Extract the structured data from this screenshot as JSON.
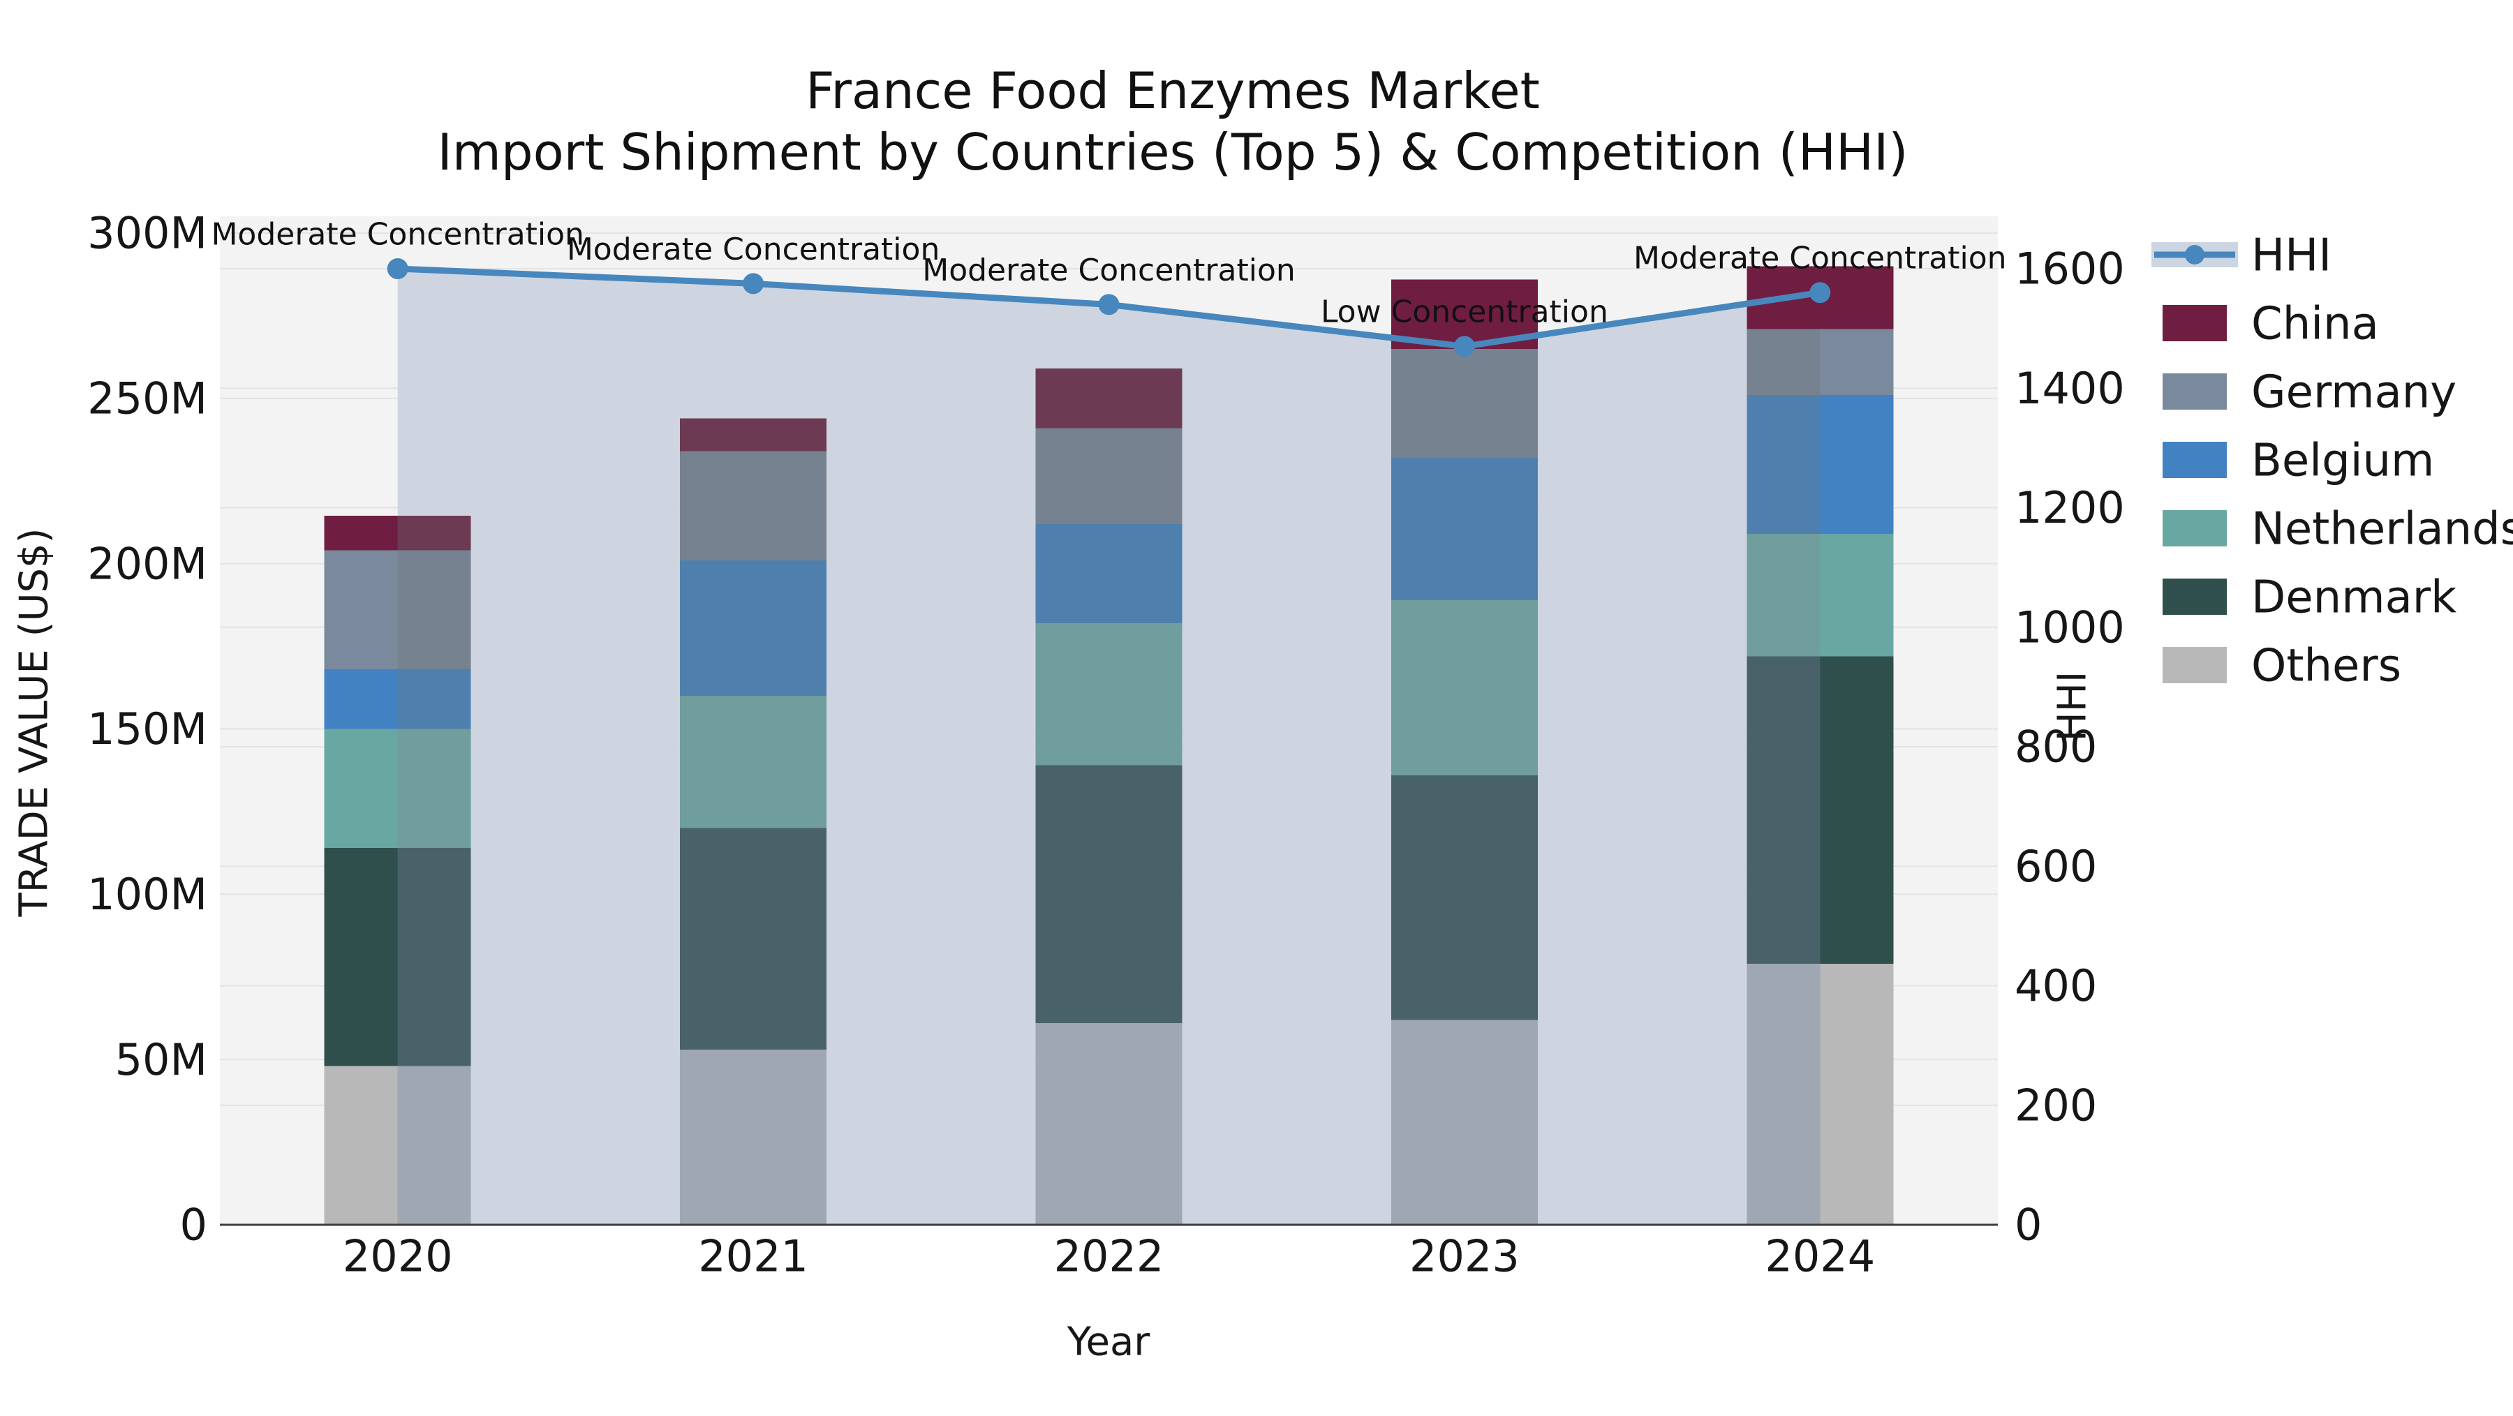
{
  "chart_data": {
    "type": "stacked_bar_with_line",
    "title_lines": [
      "France Food Enzymes Market",
      "Import Shipment by Countries (Top 5) & Competition (HHI)"
    ],
    "x_label": "Year",
    "y_left_label": "TRADE VALUE (US$)",
    "y_right_label": "HHI",
    "categories": [
      "2020",
      "2021",
      "2022",
      "2023",
      "2024"
    ],
    "value_unit": "M US$ (left axis)",
    "series": [
      {
        "name": "China",
        "values": [
          10.5,
          10,
          18,
          21,
          19
        ],
        "color": "#701d42",
        "muted_color": "#6d3a53"
      },
      {
        "name": "Germany",
        "values": [
          36,
          33,
          29,
          33,
          20
        ],
        "color": "#7a8a9c",
        "muted_color": "#76828f"
      },
      {
        "name": "Belgium",
        "values": [
          18,
          41,
          30,
          43,
          42
        ],
        "color": "#4282c2",
        "muted_color": "#4f80ad"
      },
      {
        "name": "Netherlands",
        "values": [
          36,
          40,
          43,
          53,
          37
        ],
        "color": "#69a7a3",
        "muted_color": "#6f9e9c"
      },
      {
        "name": "Denmark",
        "values": [
          66,
          67,
          78,
          74,
          93
        ],
        "color": "#2f4f4d",
        "muted_color": "#496269"
      },
      {
        "name": "Others",
        "values": [
          48,
          53,
          61,
          62,
          79
        ],
        "color": "#b8b8b8",
        "muted_color": "#9fa7b2"
      }
    ],
    "stack_order_bottom_to_top": [
      "Others",
      "Denmark",
      "Netherlands",
      "Belgium",
      "Germany",
      "China"
    ],
    "line_series": {
      "name": "HHI",
      "values": [
        1600,
        1575,
        1540,
        1470,
        1560
      ],
      "color": "#4787bd",
      "area_color": "#cbd3e0"
    },
    "annotations": [
      "Moderate Concentration",
      "Moderate Concentration",
      "Moderate Concentration",
      "Low Concentration",
      "Moderate Concentration"
    ],
    "y_left_ticks": [
      {
        "value": 0,
        "label": "0"
      },
      {
        "value": 50,
        "label": "50M"
      },
      {
        "value": 100,
        "label": "100M"
      },
      {
        "value": 150,
        "label": "150M"
      },
      {
        "value": 200,
        "label": "200M"
      },
      {
        "value": 250,
        "label": "250M"
      },
      {
        "value": 300,
        "label": "300M"
      }
    ],
    "y_right_ticks": [
      {
        "value": 0,
        "label": "0"
      },
      {
        "value": 200,
        "label": "200"
      },
      {
        "value": 400,
        "label": "400"
      },
      {
        "value": 600,
        "label": "600"
      },
      {
        "value": 800,
        "label": "800"
      },
      {
        "value": 1000,
        "label": "1000"
      },
      {
        "value": 1200,
        "label": "1200"
      },
      {
        "value": 1400,
        "label": "1400"
      },
      {
        "value": 1600,
        "label": "1600"
      }
    ],
    "y_left_max": 300,
    "y_right_max": 1600,
    "grid": true,
    "legend_position": "right",
    "legend_items": [
      "HHI",
      "China",
      "Germany",
      "Belgium",
      "Netherlands",
      "Denmark",
      "Others"
    ],
    "colors": {
      "plot_background": "#f3f3f3",
      "figure_background": "#ffffff",
      "gridline": "#e3e3e3",
      "axis_spine": "#3c3c3c",
      "text": "#161616",
      "hhi_line": "#4787bd",
      "hhi_area_fill": "#cbd3e0"
    }
  }
}
